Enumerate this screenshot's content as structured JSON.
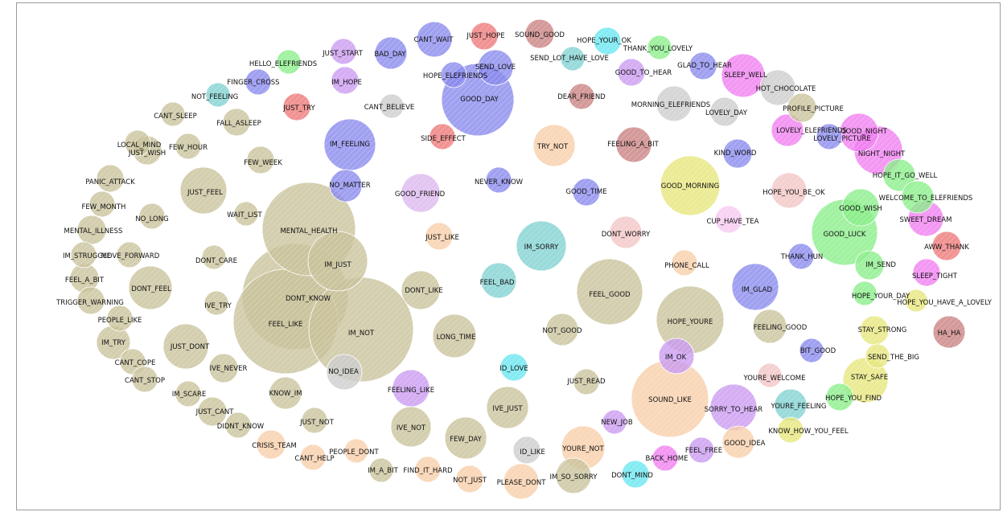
{
  "colors": {
    "olive": "#c8c29a",
    "blue": "#8888ee",
    "purple": "#c998f0",
    "magenta": "#f07df0",
    "green": "#88ee88",
    "teal": "#7fd1d1",
    "cyan": "#66e6f0",
    "red": "#ee7777",
    "darkred": "#c97f7f",
    "peach": "#f8cda8",
    "pink": "#f3c4c4",
    "gray": "#cccccc",
    "yellow": "#e6e67a",
    "lavender": "#dcb6ee",
    "lightpink": "#f6c8f0"
  },
  "nodes": [
    {
      "label": "MENTAL_HEALTH",
      "c": "olive",
      "s": 58
    },
    {
      "label": "DONT_KNOW",
      "c": "olive",
      "s": 66
    },
    {
      "label": "FEEL_LIKE",
      "c": "olive",
      "s": 65
    },
    {
      "label": "IM_NOT",
      "c": "olive",
      "s": 65
    },
    {
      "label": "IM_JUST",
      "c": "olive",
      "s": 37
    },
    {
      "label": "GOOD_DAY",
      "c": "blue",
      "s": 45
    },
    {
      "label": "SOUND_LIKE",
      "c": "peach",
      "s": 48
    },
    {
      "label": "GOOD_LUCK",
      "c": "green",
      "s": 41
    },
    {
      "label": "FEEL_GOOD",
      "c": "olive",
      "s": 41
    },
    {
      "label": "HOPE_YOURE",
      "c": "olive",
      "s": 42
    },
    {
      "label": "GOOD_MORNING",
      "c": "yellow",
      "s": 37
    },
    {
      "label": "IM_FEELING",
      "c": "blue",
      "s": 32
    },
    {
      "label": "IM_SORRY",
      "c": "teal",
      "s": 31
    },
    {
      "label": "JUST_FEEL",
      "c": "olive",
      "s": 29
    },
    {
      "label": "GOOD_FRIEND",
      "c": "lavender",
      "s": 24
    },
    {
      "label": "TRY_NOT",
      "c": "peach",
      "s": 26
    },
    {
      "label": "IM_GLAD",
      "c": "blue",
      "s": 29
    },
    {
      "label": "SORRY_TO_HEAR",
      "c": "purple",
      "s": 29
    },
    {
      "label": "NIGHT_NIGHT",
      "c": "magenta",
      "s": 30
    },
    {
      "label": "GOOD_NIGHT",
      "c": "magenta",
      "s": 24
    },
    {
      "label": "SLEEP_WELL",
      "c": "magenta",
      "s": 27
    },
    {
      "label": "LONG_TIME",
      "c": "olive",
      "s": 27
    },
    {
      "label": "JUST_DONT",
      "c": "olive",
      "s": 28
    },
    {
      "label": "IVE_NOT",
      "c": "olive",
      "s": 25
    },
    {
      "label": "FEW_DAY",
      "c": "olive",
      "s": 26
    },
    {
      "label": "IVE_JUST",
      "c": "olive",
      "s": 26
    },
    {
      "label": "YOURE_NOT",
      "c": "peach",
      "s": 27
    },
    {
      "label": "STAY_SAFE",
      "c": "yellow",
      "s": 28
    },
    {
      "label": "DONT_FEEL",
      "c": "olive",
      "s": 27
    },
    {
      "label": "DONT_LIKE",
      "c": "olive",
      "s": 24
    },
    {
      "label": "IM_OK",
      "c": "purple",
      "s": 22
    },
    {
      "label": "MORNING_ELEFRIENDS",
      "c": "gray",
      "s": 22
    },
    {
      "label": "FEELING_LIKE",
      "c": "purple",
      "s": 23
    },
    {
      "label": "FEELING_A_BIT",
      "c": "darkred",
      "s": 22
    },
    {
      "label": "GOOD_WISH",
      "c": "green",
      "s": 23
    },
    {
      "label": "SWEET_DREAM",
      "c": "magenta",
      "s": 22
    },
    {
      "label": "PLEASE_DONT",
      "c": "peach",
      "s": 22
    },
    {
      "label": "FEEL_BAD",
      "c": "teal",
      "s": 22
    },
    {
      "label": "DONT_WORRY",
      "c": "pink",
      "s": 20
    },
    {
      "label": "IM_TRY",
      "c": "olive",
      "s": 21
    },
    {
      "label": "KNOW_IM",
      "c": "olive",
      "s": 20
    },
    {
      "label": "HOT_CHOCOLATE",
      "c": "gray",
      "s": 22
    },
    {
      "label": "FEELING_GOOD",
      "c": "olive",
      "s": 21
    },
    {
      "label": "HA_HA",
      "c": "darkred",
      "s": 20
    },
    {
      "label": "SEND_LOVE",
      "c": "blue",
      "s": 22
    },
    {
      "label": "HOPE_YOU_BE_OK",
      "c": "pink",
      "s": 22
    },
    {
      "label": "YOURE_FEELING",
      "c": "teal",
      "s": 20
    },
    {
      "label": "IM_SO_SORRY",
      "c": "olive",
      "s": 22
    },
    {
      "label": "NOT_GOOD",
      "c": "olive",
      "s": 20
    },
    {
      "label": "NO_IDEA",
      "c": "gray",
      "s": 22
    },
    {
      "label": "GOOD_IDEA",
      "c": "peach",
      "s": 20
    },
    {
      "label": "HOPE_IT_GO_WELL",
      "c": "green",
      "s": 20
    },
    {
      "label": "NO_MATTER",
      "c": "blue",
      "s": 20
    },
    {
      "label": "PROFILE_PICTURE",
      "c": "olive",
      "s": 18
    },
    {
      "label": "LOVELY_ELEFRIENDS",
      "c": "magenta",
      "s": 20
    },
    {
      "label": "MENTAL_ILLNESS",
      "c": "olive",
      "s": 18
    },
    {
      "label": "WELCOME_TO_ELEFRIENDS",
      "c": "green",
      "s": 20
    },
    {
      "label": "IVE_NEVER",
      "c": "olive",
      "s": 18
    },
    {
      "label": "DEAR_FRIEND",
      "c": "darkred",
      "s": 16
    },
    {
      "label": "CRISIS_TEAM",
      "c": "peach",
      "s": 18
    },
    {
      "label": "JUST_WISH",
      "c": "olive",
      "s": 18
    },
    {
      "label": "STAY_STRONG",
      "c": "yellow",
      "s": 18
    },
    {
      "label": "AWW_THANK",
      "c": "red",
      "s": 18
    },
    {
      "label": "JUST_CANT",
      "c": "olive",
      "s": 18
    },
    {
      "label": "JUST_READ",
      "c": "olive",
      "s": 16
    },
    {
      "label": "IM_SEND",
      "c": "green",
      "s": 18
    },
    {
      "label": "GOOD_TIME",
      "c": "blue",
      "s": 17
    },
    {
      "label": "KIND_WORD",
      "c": "blue",
      "s": 18
    },
    {
      "label": "PANIC_ATTACK",
      "c": "olive",
      "s": 17
    },
    {
      "label": "MOVE_FORWARD",
      "c": "olive",
      "s": 16
    },
    {
      "label": "IM_STRUGGLE",
      "c": "olive",
      "s": 16
    },
    {
      "label": "FEEL_A_BIT",
      "c": "olive",
      "s": 18
    },
    {
      "label": "JUST_LIKE",
      "c": "peach",
      "s": 17
    },
    {
      "label": "NEVER_KNOW",
      "c": "blue",
      "s": 16
    },
    {
      "label": "SIDE_EFFECT",
      "c": "red",
      "s": 16
    },
    {
      "label": "CUP_HAVE_TEA",
      "c": "lightpink",
      "s": 17
    },
    {
      "label": "PHONE_CALL",
      "c": "peach",
      "s": 16
    },
    {
      "label": "TRIGGER_WARNING",
      "c": "olive",
      "s": 17
    },
    {
      "label": "PEOPLE_LIKE",
      "c": "olive",
      "s": 16
    },
    {
      "label": "CANT_COPE",
      "c": "olive",
      "s": 16
    },
    {
      "label": "CANT_STOP",
      "c": "olive",
      "s": 16
    },
    {
      "label": "IM_SCARE",
      "c": "olive",
      "s": 16
    },
    {
      "label": "DIDNT_KNOW",
      "c": "olive",
      "s": 16
    },
    {
      "label": "CANT_HELP",
      "c": "peach",
      "s": 16
    },
    {
      "label": "PEOPLE_DONT",
      "c": "peach",
      "s": 15
    },
    {
      "label": "IM_A_BIT",
      "c": "olive",
      "s": 15
    },
    {
      "label": "FIND_IT_HARD",
      "c": "peach",
      "s": 16
    },
    {
      "label": "NOT_JUST",
      "c": "peach",
      "s": 17
    },
    {
      "label": "ID_LIKE",
      "c": "gray",
      "s": 17
    },
    {
      "label": "DONT_MIND",
      "c": "cyan",
      "s": 17
    },
    {
      "label": "BACK_HOME",
      "c": "magenta",
      "s": 16
    },
    {
      "label": "FEEL_FREE",
      "c": "purple",
      "s": 16
    },
    {
      "label": "NEW_JOB",
      "c": "purple",
      "s": 15
    },
    {
      "label": "ID_LOVE",
      "c": "cyan",
      "s": 17
    },
    {
      "label": "KNOW_HOW_YOU_FEEL",
      "c": "yellow",
      "s": 16
    },
    {
      "label": "HOPE_YOU_FIND",
      "c": "green",
      "s": 17
    },
    {
      "label": "SEND_THE_BIG",
      "c": "yellow",
      "s": 15
    },
    {
      "label": "YOURE_WELCOME",
      "c": "pink",
      "s": 15
    },
    {
      "label": "BIT_GOOD",
      "c": "blue",
      "s": 15
    },
    {
      "label": "HOPE_YOU_HAVE_A_LOVELY",
      "c": "yellow",
      "s": 14
    },
    {
      "label": "HOPE_YOUR_DAY",
      "c": "green",
      "s": 15
    },
    {
      "label": "SLEEP_TIGHT",
      "c": "magenta",
      "s": 17
    },
    {
      "label": "THANK_HUN",
      "c": "blue",
      "s": 16
    },
    {
      "label": "LOVELY_PICTURE",
      "c": "blue",
      "s": 16
    },
    {
      "label": "LOVELY_DAY",
      "c": "gray",
      "s": 18
    },
    {
      "label": "GLAD_TO_HEAR",
      "c": "blue",
      "s": 17
    },
    {
      "label": "THANK_YOU_LOVELY",
      "c": "green",
      "s": 15
    },
    {
      "label": "GOOD_TO_HEAR",
      "c": "purple",
      "s": 17
    },
    {
      "label": "HOPE_YOUR_OK",
      "c": "cyan",
      "s": 17
    },
    {
      "label": "SEND_LOT_HAVE_LOVE",
      "c": "teal",
      "s": 15
    },
    {
      "label": "SOUND_GOOD",
      "c": "darkred",
      "s": 18
    },
    {
      "label": "JUST_HOPE",
      "c": "red",
      "s": 17
    },
    {
      "label": "CANT_WAIT",
      "c": "blue",
      "s": 22
    },
    {
      "label": "HOPE_ELEFRIENDS",
      "c": "blue",
      "s": 16
    },
    {
      "label": "BAD_DAY",
      "c": "blue",
      "s": 20
    },
    {
      "label": "CANT_BELIEVE",
      "c": "gray",
      "s": 15
    },
    {
      "label": "JUST_START",
      "c": "purple",
      "s": 16
    },
    {
      "label": "IM_HOPE",
      "c": "purple",
      "s": 17
    },
    {
      "label": "HELLO_ELEFRIENDS",
      "c": "green",
      "s": 15
    },
    {
      "label": "JUST_TRY",
      "c": "red",
      "s": 17
    },
    {
      "label": "FINGER_CROSS",
      "c": "blue",
      "s": 16
    },
    {
      "label": "NOT_FEELING",
      "c": "teal",
      "s": 15
    },
    {
      "label": "CANT_SLEEP",
      "c": "olive",
      "s": 15
    },
    {
      "label": "FALL_ASLEEP",
      "c": "olive",
      "s": 17
    },
    {
      "label": "LOCAL_MIND",
      "c": "olive",
      "s": 16
    },
    {
      "label": "FEW_HOUR",
      "c": "olive",
      "s": 16
    },
    {
      "label": "FEW_WEEK",
      "c": "olive",
      "s": 17
    },
    {
      "label": "FEW_MONTH",
      "c": "olive",
      "s": 16
    },
    {
      "label": "NO_LONG",
      "c": "olive",
      "s": 16
    },
    {
      "label": "WAIT_LIST",
      "c": "olive",
      "s": 15
    },
    {
      "label": "DONT_CARE",
      "c": "olive",
      "s": 15
    },
    {
      "label": "IVE_TRY",
      "c": "olive",
      "s": 15
    },
    {
      "label": "JUST_NOT",
      "c": "olive",
      "s": 16
    }
  ]
}
